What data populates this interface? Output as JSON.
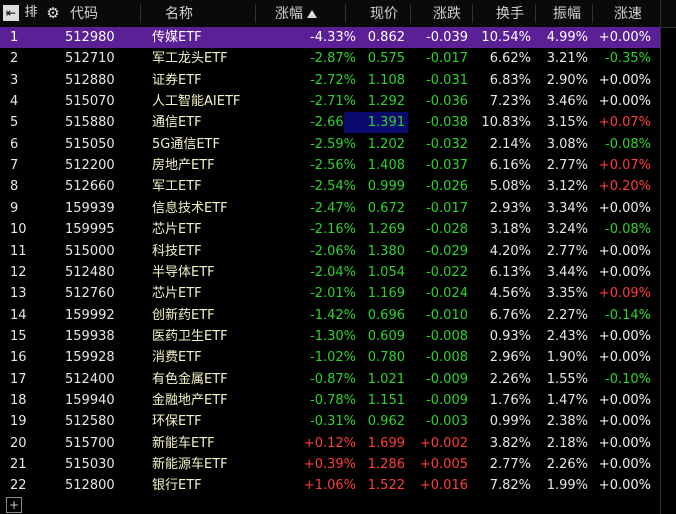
{
  "toolbar": {
    "sort_label": "排"
  },
  "table": {
    "headers": [
      "代码",
      "名称",
      "涨幅",
      "现价",
      "涨跌",
      "换手",
      "振幅",
      "涨速"
    ],
    "rows": [
      [
        "1",
        "512980",
        "传媒ETF",
        "-4.33%",
        "0.862",
        "-0.039",
        "10.54%",
        "4.99%",
        "+0.00%"
      ],
      [
        "2",
        "512710",
        "军工龙头ETF",
        "-2.87%",
        "0.575",
        "-0.017",
        "6.62%",
        "3.21%",
        "-0.35%"
      ],
      [
        "3",
        "512880",
        "证券ETF",
        "-2.72%",
        "1.108",
        "-0.031",
        "6.83%",
        "2.90%",
        "+0.00%"
      ],
      [
        "4",
        "515070",
        "人工智能AIETF",
        "-2.71%",
        "1.292",
        "-0.036",
        "7.23%",
        "3.46%",
        "+0.00%"
      ],
      [
        "5",
        "515880",
        "通信ETF",
        "-2.66%",
        "1.391",
        "-0.038",
        "10.83%",
        "3.15%",
        "+0.07%"
      ],
      [
        "6",
        "515050",
        "5G通信ETF",
        "-2.59%",
        "1.202",
        "-0.032",
        "2.14%",
        "3.08%",
        "-0.08%"
      ],
      [
        "7",
        "512200",
        "房地产ETF",
        "-2.56%",
        "1.408",
        "-0.037",
        "6.16%",
        "2.77%",
        "+0.07%"
      ],
      [
        "8",
        "512660",
        "军工ETF",
        "-2.54%",
        "0.999",
        "-0.026",
        "5.08%",
        "3.12%",
        "+0.20%"
      ],
      [
        "9",
        "159939",
        "信息技术ETF",
        "-2.47%",
        "0.672",
        "-0.017",
        "2.93%",
        "3.34%",
        "+0.00%"
      ],
      [
        "10",
        "159995",
        "芯片ETF",
        "-2.16%",
        "1.269",
        "-0.028",
        "3.18%",
        "3.24%",
        "-0.08%"
      ],
      [
        "11",
        "515000",
        "科技ETF",
        "-2.06%",
        "1.380",
        "-0.029",
        "4.20%",
        "2.77%",
        "+0.00%"
      ],
      [
        "12",
        "512480",
        "半导体ETF",
        "-2.04%",
        "1.054",
        "-0.022",
        "6.13%",
        "3.44%",
        "+0.00%"
      ],
      [
        "13",
        "512760",
        "芯片ETF",
        "-2.01%",
        "1.169",
        "-0.024",
        "4.56%",
        "3.35%",
        "+0.09%"
      ],
      [
        "14",
        "159992",
        "创新药ETF",
        "-1.42%",
        "0.696",
        "-0.010",
        "6.76%",
        "2.27%",
        "-0.14%"
      ],
      [
        "15",
        "159938",
        "医药卫生ETF",
        "-1.30%",
        "0.609",
        "-0.008",
        "0.93%",
        "2.43%",
        "+0.00%"
      ],
      [
        "16",
        "159928",
        "消费ETF",
        "-1.02%",
        "0.780",
        "-0.008",
        "2.96%",
        "1.90%",
        "+0.00%"
      ],
      [
        "17",
        "512400",
        "有色金属ETF",
        "-0.87%",
        "1.021",
        "-0.009",
        "2.26%",
        "1.55%",
        "-0.10%"
      ],
      [
        "18",
        "159940",
        "金融地产ETF",
        "-0.78%",
        "1.151",
        "-0.009",
        "1.76%",
        "1.47%",
        "+0.00%"
      ],
      [
        "19",
        "512580",
        "环保ETF",
        "-0.31%",
        "0.962",
        "-0.003",
        "0.99%",
        "2.38%",
        "+0.00%"
      ],
      [
        "20",
        "515700",
        "新能车ETF",
        "+0.12%",
        "1.699",
        "+0.002",
        "3.82%",
        "2.18%",
        "+0.00%"
      ],
      [
        "21",
        "515030",
        "新能源车ETF",
        "+0.39%",
        "1.286",
        "+0.005",
        "2.77%",
        "2.26%",
        "+0.00%"
      ],
      [
        "22",
        "512800",
        "银行ETF",
        "+1.06%",
        "1.522",
        "+0.016",
        "7.82%",
        "1.99%",
        "+0.00%"
      ]
    ]
  }
}
